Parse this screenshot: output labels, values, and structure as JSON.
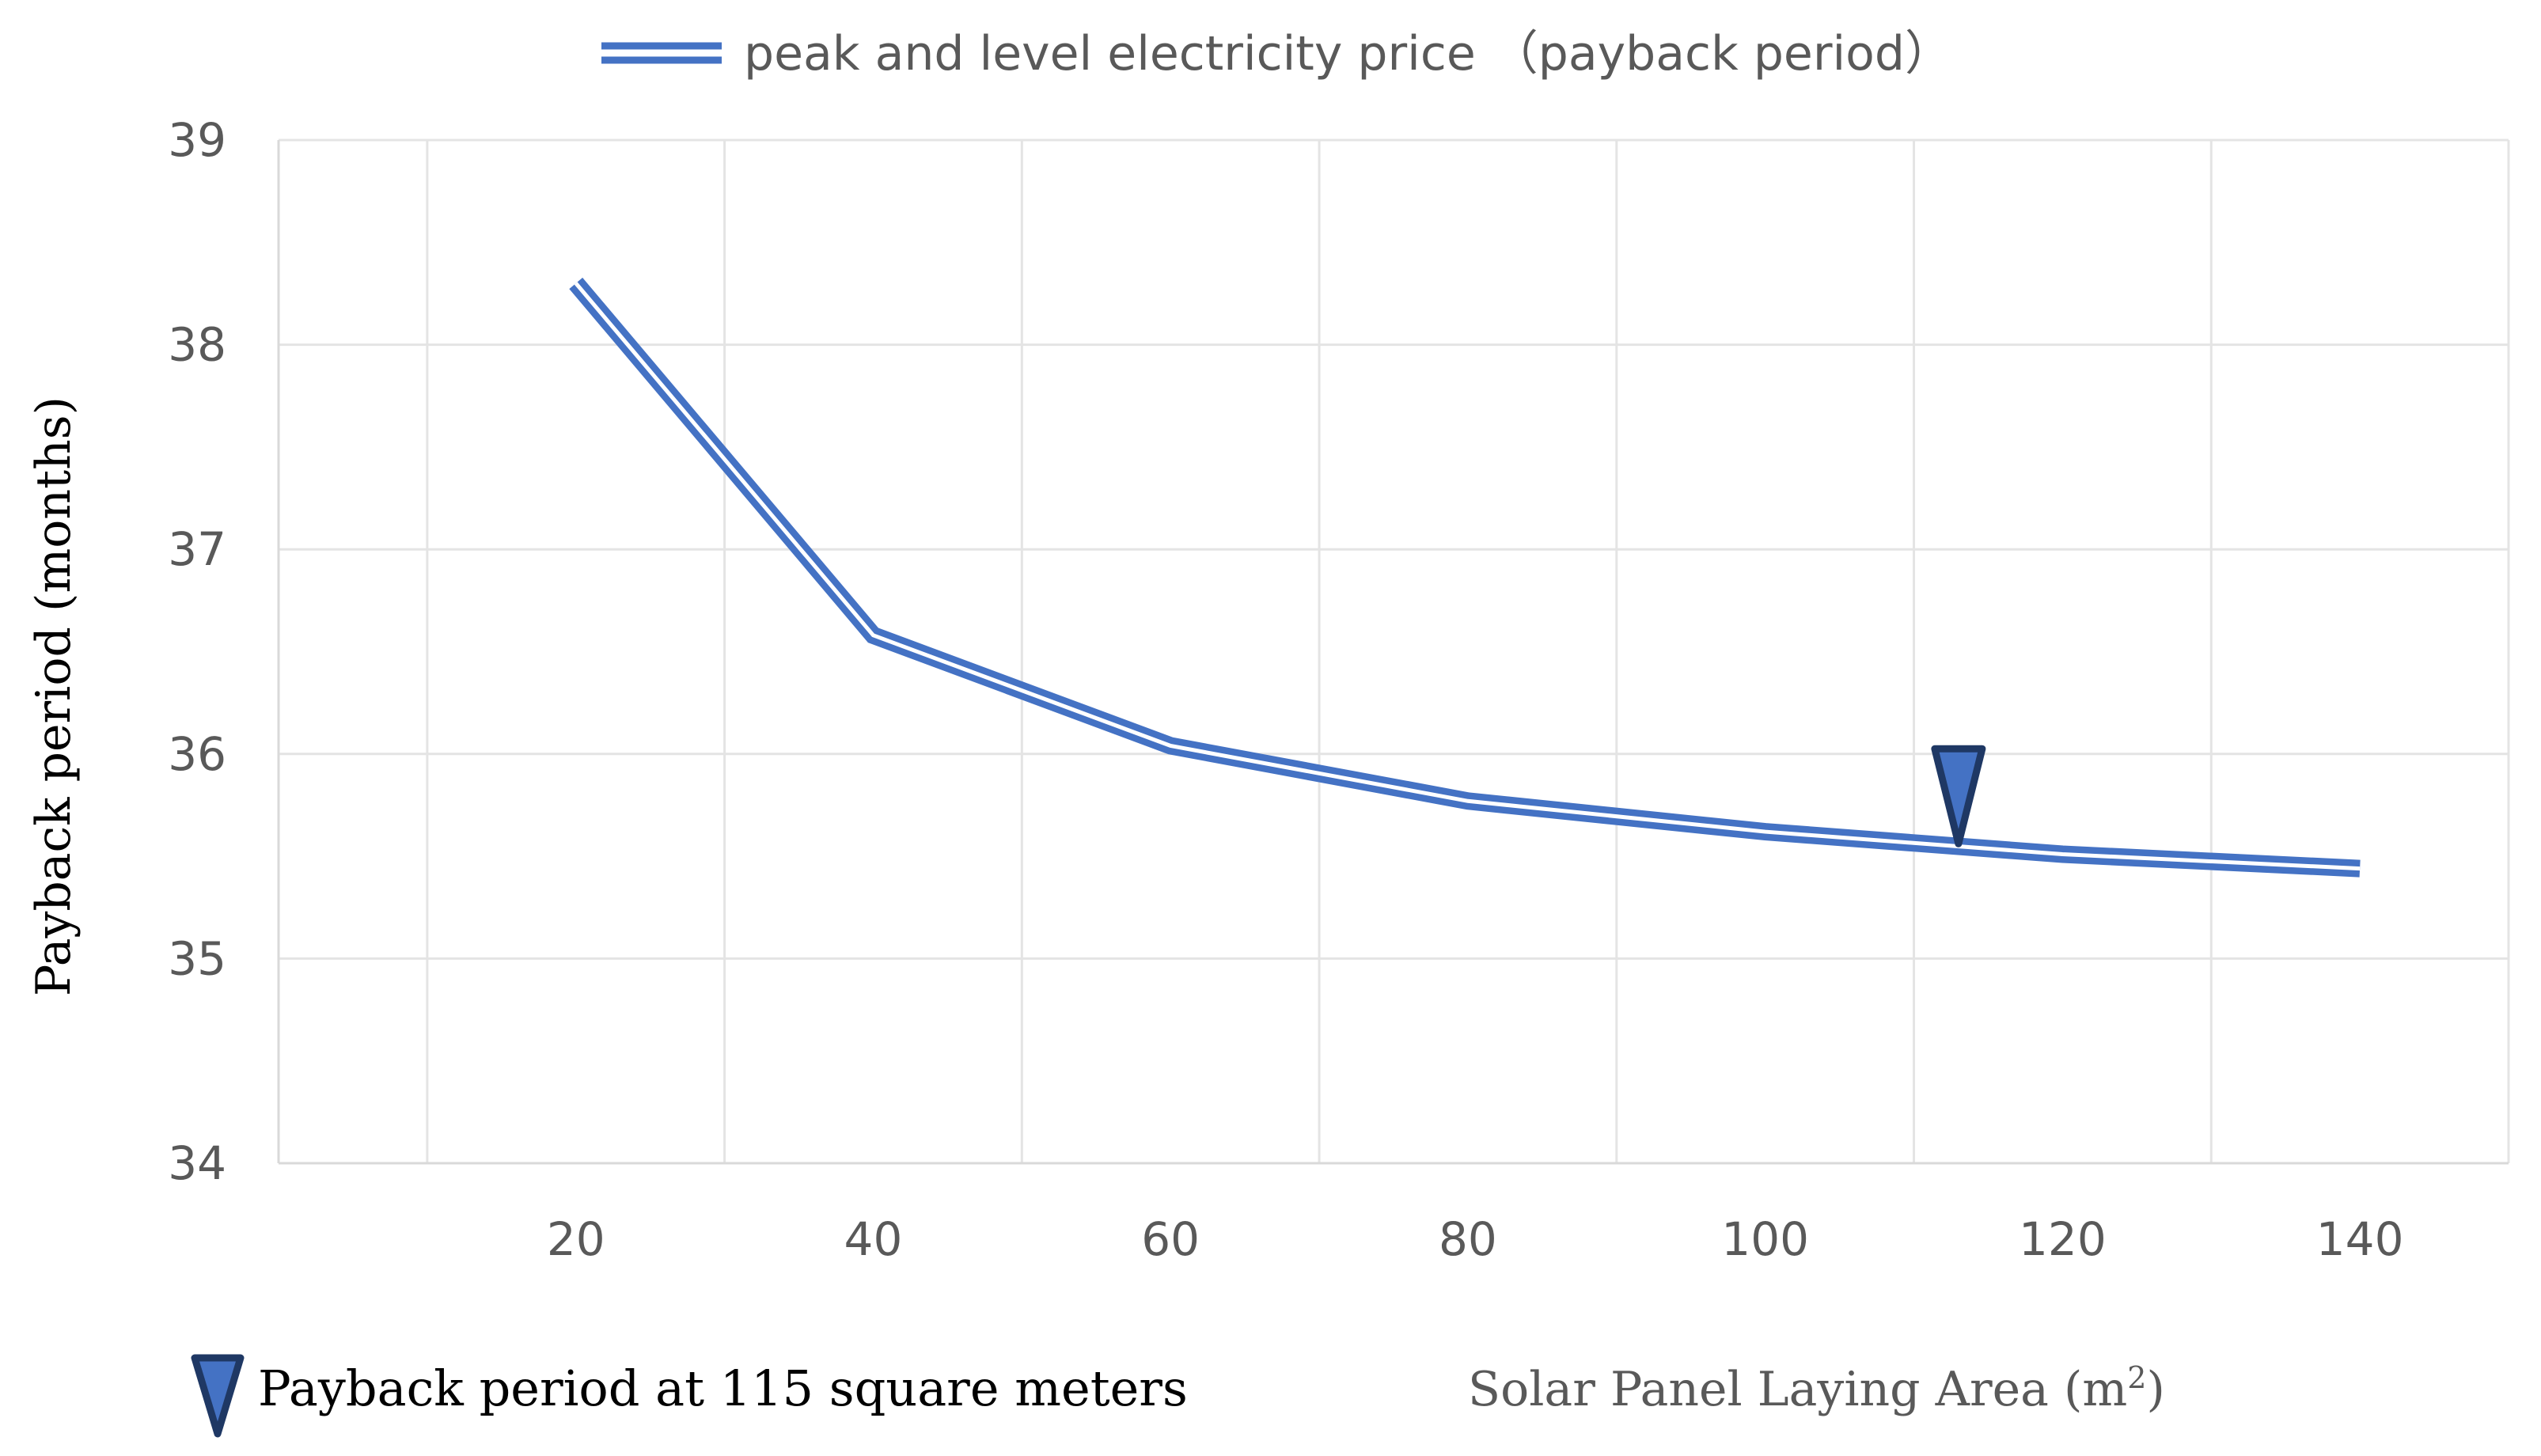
{
  "chart_data": {
    "type": "line",
    "title": "",
    "xlabel": "Solar Panel Laying Area (m",
    "xlabel_superscript": "2",
    "xlabel_close": ")",
    "ylabel": "Payback period (months)",
    "x": [
      20,
      40,
      60,
      80,
      100,
      120,
      140
    ],
    "xlim": [
      0,
      150
    ],
    "xticks": [
      20,
      40,
      60,
      80,
      100,
      120,
      140
    ],
    "xgrid": [
      10,
      30,
      50,
      70,
      90,
      110,
      130,
      150
    ],
    "ylim": [
      34,
      39
    ],
    "yticks": [
      34,
      35,
      36,
      37,
      38,
      39
    ],
    "grid": true,
    "series": [
      {
        "name": "peak and level electricity price （payback period）",
        "values": [
          38.3,
          36.58,
          36.04,
          35.77,
          35.62,
          35.51,
          35.44
        ]
      }
    ],
    "annotation": {
      "label": "Payback period at 115 square meters",
      "x": 113,
      "y": 35.6
    },
    "legend_position": "top-center"
  },
  "colors": {
    "line": "#4472C4",
    "marker_fill": "#4472C4",
    "marker_stroke": "#1F3864",
    "grid": "#E4E4E4",
    "axis": "#D9D9D9",
    "text": "#595959"
  }
}
